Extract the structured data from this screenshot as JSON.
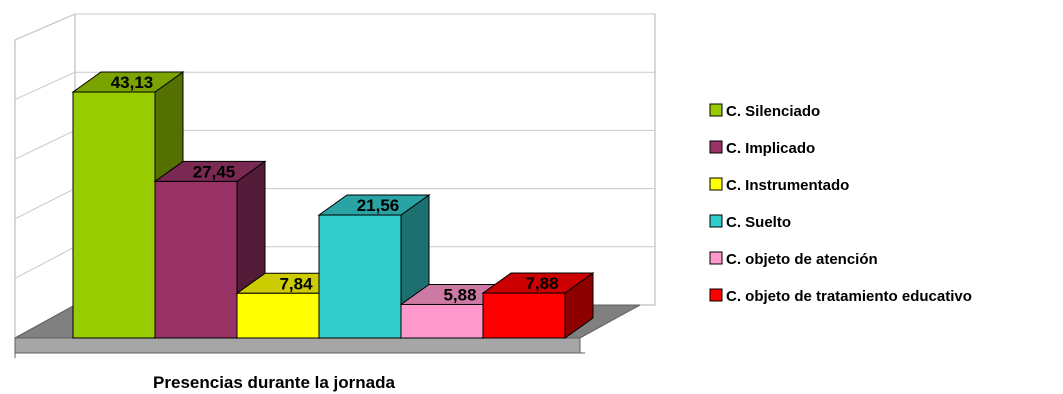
{
  "chart_data": {
    "type": "bar",
    "title": "",
    "xlabel": "Presencias durante la jornada",
    "ylabel": "",
    "categories": [
      "C. Silenciado",
      "C. Implicado",
      "C. Instrumentado",
      "C. Suelto",
      "C. objeto de atención",
      "C. objeto de tratamiento educativo"
    ],
    "values": [
      43.13,
      27.45,
      7.84,
      21.56,
      5.88,
      7.88
    ],
    "data_labels": [
      "43,13",
      "27,45",
      "7,84",
      "21,56",
      "5,88",
      "7,88"
    ],
    "colors": [
      "#99cc00",
      "#993366",
      "#ffff00",
      "#33cccc",
      "#ff99cc",
      "#ff0000"
    ],
    "ylim": [
      0,
      50
    ],
    "grid": true,
    "style": "3d",
    "legend_position": "right"
  }
}
